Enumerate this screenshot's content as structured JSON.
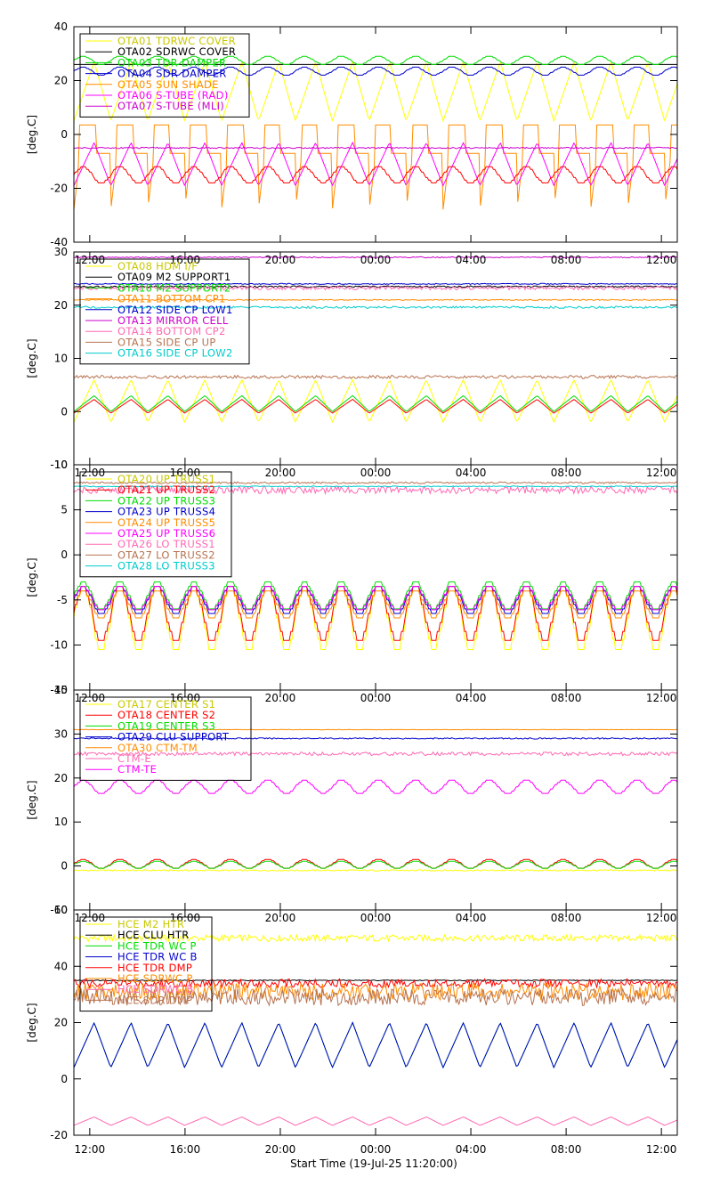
{
  "x_axis_title": "Start Time (19-Jul-25 11:20:00)",
  "chart_data": [
    {
      "type": "line",
      "ylabel": "[deg.C]",
      "ylim": [
        -40,
        40
      ],
      "yticks": [
        -40,
        -20,
        0,
        20,
        40
      ],
      "xlim": [
        11.333,
        36.667
      ],
      "xticks": [
        12,
        16,
        20,
        24,
        28,
        32,
        36
      ],
      "xtick_labels": [
        "12:00",
        "16:00",
        "20:00",
        "00:00",
        "04:00",
        "08:00",
        "12:00"
      ],
      "show_xtick_labels": false,
      "series": [
        {
          "name": "OTA01 TDRWC COVER",
          "color": "#ffff00",
          "base": 16,
          "amp": 11,
          "period": 1.55,
          "kind": "saw"
        },
        {
          "name": "OTA02 SDRWC COVER",
          "color": "#000000",
          "base": 26,
          "amp": 0,
          "period": 1.55,
          "kind": "flat"
        },
        {
          "name": "OTA03 TDR DAMPER",
          "color": "#00dd00",
          "base": 27.5,
          "amp": 1.5,
          "period": 1.55,
          "kind": "step"
        },
        {
          "name": "OTA04 SDR DAMPER",
          "color": "#0000cc",
          "base": 23.5,
          "amp": 1.5,
          "period": 1.55,
          "kind": "step"
        },
        {
          "name": "OTA05 SUN SHADE",
          "color": "#ff8c00",
          "base": -10,
          "amp": 15,
          "period": 1.55,
          "kind": "spike"
        },
        {
          "name": "OTA06 S-TUBE (RAD)",
          "color": "#ff00ff",
          "base": -11,
          "amp": 8,
          "period": 1.55,
          "kind": "saw"
        },
        {
          "name": "OTA07 S-TUBE (MLI)",
          "color": "#cc00cc",
          "base": -5,
          "amp": 0.5,
          "period": 1.55,
          "kind": "flat"
        },
        {
          "name": "",
          "color": "#ff0000",
          "base": -15,
          "amp": 3,
          "period": 1.55,
          "kind": "step"
        }
      ]
    },
    {
      "type": "line",
      "ylabel": "[deg.C]",
      "ylim": [
        -10,
        30
      ],
      "yticks": [
        -10,
        0,
        10,
        20,
        30
      ],
      "xlim": [
        11.333,
        36.667
      ],
      "xticks": [
        12,
        16,
        20,
        24,
        28,
        32,
        36
      ],
      "xtick_labels": [
        "12:00",
        "16:00",
        "20:00",
        "00:00",
        "04:00",
        "08:00",
        "12:00"
      ],
      "show_xtick_labels": true,
      "series": [
        {
          "name": "OTA08 HDM I/F",
          "color": "#ffff00",
          "base": 2,
          "amp": 4,
          "period": 1.55,
          "kind": "saw"
        },
        {
          "name": "OTA09 M2 SUPPORT1",
          "color": "#000000",
          "base": 23.5,
          "amp": 0.3,
          "period": 3,
          "kind": "flat"
        },
        {
          "name": "OTA10 M2 SUPPORT2",
          "color": "#00dd00",
          "base": 1.5,
          "amp": 1.5,
          "period": 1.55,
          "kind": "saw"
        },
        {
          "name": "OTA11 BOTTOM CP1",
          "color": "#ff8c00",
          "base": 21,
          "amp": 0.2,
          "period": 3,
          "kind": "flat"
        },
        {
          "name": "OTA12 SIDE CP LOW1",
          "color": "#0000cc",
          "base": 24,
          "amp": 0.2,
          "period": 3,
          "kind": "flat"
        },
        {
          "name": "OTA13 MIRROR CELL",
          "color": "#cc00cc",
          "base": 29,
          "amp": 0.2,
          "period": 3,
          "kind": "flat"
        },
        {
          "name": "OTA14 BOTTOM CP2",
          "color": "#ff69b4",
          "base": 23.2,
          "amp": 0.6,
          "period": 3,
          "kind": "flat"
        },
        {
          "name": "OTA15 SIDE CP UP",
          "color": "#b87350",
          "base": 6.5,
          "amp": 0.6,
          "period": 3,
          "kind": "flat"
        },
        {
          "name": "OTA16 SIDE CP LOW2",
          "color": "#00cccc",
          "base": 19.6,
          "amp": 0.4,
          "period": 3,
          "kind": "flat"
        },
        {
          "name": "",
          "color": "#ff0000",
          "base": 1,
          "amp": 1.3,
          "period": 1.55,
          "kind": "saw"
        }
      ]
    },
    {
      "type": "line",
      "ylabel": "[deg.C]",
      "ylim": [
        -15,
        10
      ],
      "yticks": [
        -15,
        -10,
        -5,
        0,
        5,
        10
      ],
      "xlim": [
        11.333,
        36.667
      ],
      "xticks": [
        12,
        16,
        20,
        24,
        28,
        32,
        36
      ],
      "xtick_labels": [
        "12:00",
        "16:00",
        "20:00",
        "00:00",
        "04:00",
        "08:00",
        "12:00"
      ],
      "show_xtick_labels": true,
      "series": [
        {
          "name": "OTA20 UP TRUSS1",
          "color": "#ffff00",
          "base": -7,
          "amp": 3.5,
          "period": 1.55,
          "kind": "step"
        },
        {
          "name": "OTA21 UP TRUSS2",
          "color": "#ff0000",
          "base": -6.5,
          "amp": 3,
          "period": 1.55,
          "kind": "step"
        },
        {
          "name": "OTA22 UP TRUSS3",
          "color": "#00dd00",
          "base": -4.5,
          "amp": 1.5,
          "period": 1.55,
          "kind": "step"
        },
        {
          "name": "OTA23 UP TRUSS4",
          "color": "#0000cc",
          "base": -5,
          "amp": 1.5,
          "period": 1.55,
          "kind": "step"
        },
        {
          "name": "OTA24 UP TRUSS5",
          "color": "#ff8c00",
          "base": -5.5,
          "amp": 1.5,
          "period": 1.55,
          "kind": "step"
        },
        {
          "name": "OTA25 UP TRUSS6",
          "color": "#ff00ff",
          "base": -4.8,
          "amp": 1.3,
          "period": 1.55,
          "kind": "step"
        },
        {
          "name": "OTA26 LO TRUSS1",
          "color": "#ff69b4",
          "base": 7.2,
          "amp": 0.8,
          "period": 3,
          "kind": "flat"
        },
        {
          "name": "OTA27 LO TRUSS2",
          "color": "#b87350",
          "base": 8,
          "amp": 0.2,
          "period": 3,
          "kind": "flat"
        },
        {
          "name": "OTA28 LO TRUSS3",
          "color": "#00cccc",
          "base": 7.6,
          "amp": 0.1,
          "period": 3,
          "kind": "flat"
        }
      ]
    },
    {
      "type": "line",
      "ylabel": "[deg.C]",
      "ylim": [
        -10,
        40
      ],
      "yticks": [
        -10,
        0,
        10,
        20,
        30,
        40
      ],
      "xlim": [
        11.333,
        36.667
      ],
      "xticks": [
        12,
        16,
        20,
        24,
        28,
        32,
        36
      ],
      "xtick_labels": [
        "12:00",
        "16:00",
        "20:00",
        "00:00",
        "04:00",
        "08:00",
        "12:00"
      ],
      "show_xtick_labels": true,
      "series": [
        {
          "name": "OTA17 CENTER S1",
          "color": "#ffff00",
          "base": -1,
          "amp": 0.3,
          "period": 3,
          "kind": "flat"
        },
        {
          "name": "OTA18 CENTER S2",
          "color": "#ff0000",
          "base": 0.5,
          "amp": 1,
          "period": 1.55,
          "kind": "step"
        },
        {
          "name": "OTA19 CENTER S3",
          "color": "#00dd00",
          "base": 0.3,
          "amp": 0.8,
          "period": 1.55,
          "kind": "step"
        },
        {
          "name": "OTA29 CLU SUPPORT",
          "color": "#0000cc",
          "base": 29,
          "amp": 0.3,
          "period": 3,
          "kind": "flat"
        },
        {
          "name": "OTA30 CTM-TM",
          "color": "#ff8c00",
          "base": 31,
          "amp": 0.1,
          "period": 3,
          "kind": "flat"
        },
        {
          "name": "CTM-E",
          "color": "#ff69b4",
          "base": 25.5,
          "amp": 0.8,
          "period": 3,
          "kind": "flat"
        },
        {
          "name": "CTM-TE",
          "color": "#ff00ff",
          "base": 18,
          "amp": 1.5,
          "period": 1.55,
          "kind": "step"
        }
      ]
    },
    {
      "type": "line",
      "ylabel": "[deg.C]",
      "ylim": [
        -20,
        60
      ],
      "yticks": [
        -20,
        0,
        20,
        40,
        60
      ],
      "xlim": [
        11.333,
        36.667
      ],
      "xticks": [
        12,
        16,
        20,
        24,
        28,
        32,
        36
      ],
      "xtick_labels": [
        "12:00",
        "16:00",
        "20:00",
        "00:00",
        "04:00",
        "08:00",
        "12:00"
      ],
      "show_xtick_labels": true,
      "series": [
        {
          "name": "HCE M2 HTR",
          "color": "#ffff00",
          "base": 50,
          "amp": 1.2,
          "period": 3,
          "kind": "noise"
        },
        {
          "name": "HCE CLU HTR",
          "color": "#000000",
          "base": 35,
          "amp": 0.3,
          "period": 3,
          "kind": "flat"
        },
        {
          "name": "HCE TDR WC P",
          "color": "#00dd00",
          "base": 12,
          "amp": 8,
          "period": 1.55,
          "kind": "saw"
        },
        {
          "name": "HCE TDR WC B",
          "color": "#0000cc",
          "base": 12,
          "amp": 8,
          "period": 1.55,
          "kind": "saw"
        },
        {
          "name": "HCE TDR DMP",
          "color": "#ff0000",
          "base": 34,
          "amp": 1.5,
          "period": 3,
          "kind": "noise"
        },
        {
          "name": "HCE SDRWC P",
          "color": "#ff8c00",
          "base": 31,
          "amp": 3,
          "period": 3,
          "kind": "noise"
        },
        {
          "name": "HCE SDRWC B",
          "color": "#ff69b4",
          "base": -15,
          "amp": 1.5,
          "period": 1.55,
          "kind": "saw"
        },
        {
          "name": "HCE SDR DMP",
          "color": "#b87350",
          "base": 29,
          "amp": 3,
          "period": 3,
          "kind": "noise"
        }
      ]
    }
  ]
}
